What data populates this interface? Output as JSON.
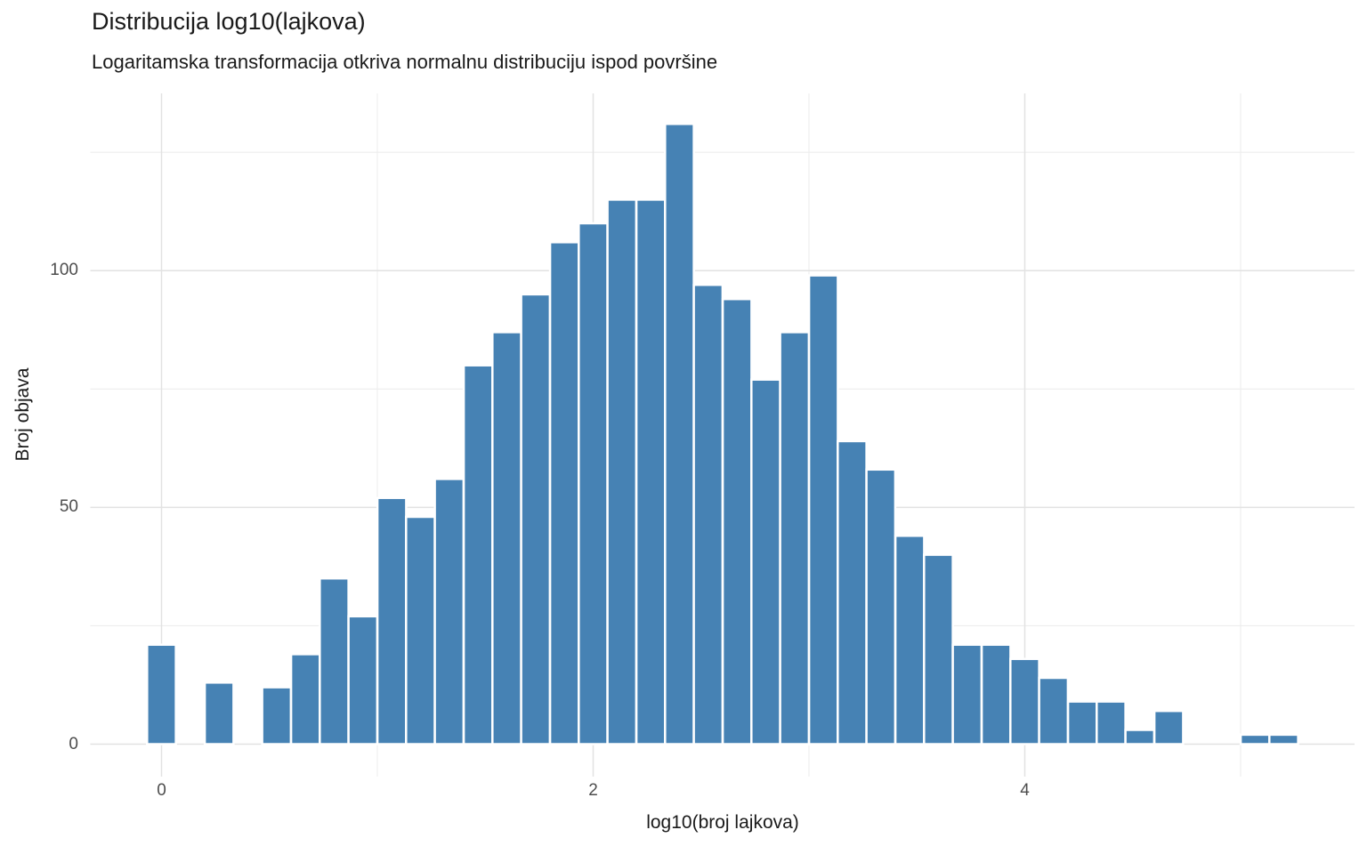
{
  "chart": {
    "title": "Distribucija log10(lajkova)",
    "subtitle": "Logaritamska transformacija otkriva normalnu distribuciju ispod površine",
    "xlabel": "log10(broj lajkova)",
    "ylabel": "Broj objava",
    "colors": {
      "background": "#ffffff",
      "bar_fill": "#4682b4",
      "bar_stroke": "#ffffff",
      "grid_major": "#e2e2e2",
      "grid_minor": "#ededed",
      "tick_label_color": "#4d4d4d",
      "title_color": "#1a1a1a"
    },
    "x_ticks": [
      {
        "value": 0,
        "label": "0"
      },
      {
        "value": 2,
        "label": "2"
      },
      {
        "value": 4,
        "label": "4"
      }
    ],
    "y_ticks": [
      {
        "value": 0,
        "label": "0"
      },
      {
        "value": 50,
        "label": "50"
      },
      {
        "value": 100,
        "label": "100"
      }
    ],
    "x_minor_gridlines": [
      1,
      3,
      5
    ],
    "y_minor_gridlines": [
      25,
      75,
      125
    ]
  },
  "chart_data": {
    "type": "bar",
    "subtype": "histogram",
    "title": "Distribucija log10(lajkova)",
    "subtitle": "Logaritamska transformacija otkriva normalnu distribuciju ispod površine",
    "xlabel": "log10(broj lajkova)",
    "ylabel": "Broj objava",
    "bin_width": 0.1333,
    "bin_centers": [
      0.0,
      0.133,
      0.267,
      0.4,
      0.533,
      0.667,
      0.8,
      0.933,
      1.067,
      1.2,
      1.333,
      1.467,
      1.6,
      1.733,
      1.867,
      2.0,
      2.133,
      2.267,
      2.4,
      2.533,
      2.667,
      2.8,
      2.933,
      3.067,
      3.2,
      3.333,
      3.467,
      3.6,
      3.733,
      3.867,
      4.0,
      4.133,
      4.267,
      4.4,
      4.533,
      4.667,
      4.8,
      4.933,
      5.067,
      5.2
    ],
    "counts": [
      21,
      0,
      13,
      0,
      12,
      19,
      35,
      27,
      52,
      48,
      56,
      80,
      87,
      95,
      106,
      110,
      115,
      115,
      131,
      97,
      94,
      77,
      87,
      99,
      64,
      58,
      44,
      40,
      21,
      21,
      18,
      14,
      9,
      9,
      3,
      7,
      0,
      0,
      2,
      2
    ],
    "xlim": [
      -0.33,
      5.53
    ],
    "ylim": [
      0,
      137.5
    ],
    "grid": true,
    "legend": "none"
  }
}
